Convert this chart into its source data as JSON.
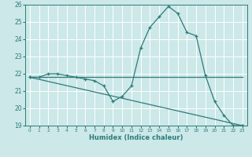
{
  "xlabel": "Humidex (Indice chaleur)",
  "xlim": [
    -0.5,
    23.5
  ],
  "ylim": [
    19,
    26
  ],
  "xticks": [
    0,
    1,
    2,
    3,
    4,
    5,
    6,
    7,
    8,
    9,
    10,
    11,
    12,
    13,
    14,
    15,
    16,
    17,
    18,
    19,
    20,
    21,
    22,
    23
  ],
  "yticks": [
    19,
    20,
    21,
    22,
    23,
    24,
    25,
    26
  ],
  "bg_color": "#cce8e8",
  "grid_color": "#ffffff",
  "line_color": "#2e7b7b",
  "curve1_x": [
    0,
    1,
    2,
    3,
    4,
    5,
    6,
    7,
    8,
    9,
    10,
    11,
    12,
    13,
    14,
    15,
    16,
    17,
    18,
    19,
    20,
    21,
    22,
    23
  ],
  "curve1_y": [
    21.8,
    21.8,
    22.0,
    22.0,
    21.9,
    21.8,
    21.7,
    21.6,
    21.3,
    20.4,
    20.7,
    21.3,
    23.5,
    24.7,
    25.3,
    25.9,
    25.5,
    24.4,
    24.2,
    21.9,
    20.4,
    19.6,
    19.0,
    19.0
  ],
  "curve2_x": [
    0,
    23
  ],
  "curve2_y": [
    21.8,
    21.8
  ],
  "curve3_x": [
    0,
    23
  ],
  "curve3_y": [
    21.8,
    19.0
  ]
}
